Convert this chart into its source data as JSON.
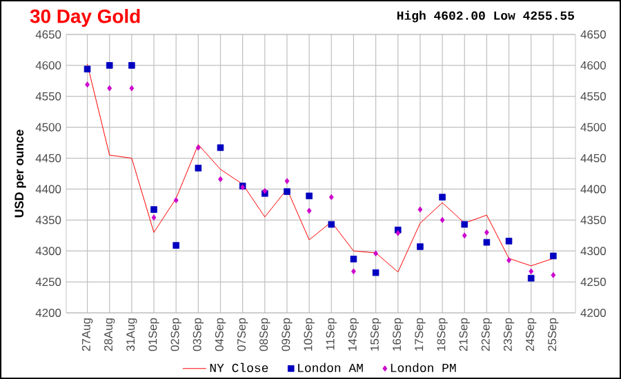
{
  "chart_data": {
    "type": "line",
    "title": "30 Day Gold",
    "ylabel": "USD per ounce",
    "annotations": [
      "High 4602.00 Low 4255.55"
    ],
    "categories": [
      "27Aug",
      "28Aug",
      "31Aug",
      "01Sep",
      "02Sep",
      "03Sep",
      "04Sep",
      "07Sep",
      "08Sep",
      "09Sep",
      "10Sep",
      "11Sep",
      "14Sep",
      "15Sep",
      "16Sep",
      "17Sep",
      "18Sep",
      "21Sep",
      "22Sep",
      "23Sep",
      "24Sep",
      "25Sep"
    ],
    "series": [
      {
        "name": "NY Close",
        "color": "#ff0000",
        "marker": "none",
        "values": [
          4602,
          4455,
          4450,
          4330,
          4385,
          4472,
          4432,
          4408,
          4355,
          4400,
          4318,
          4347,
          4300,
          4297,
          4266,
          4345,
          4378,
          4345,
          4358,
          4288,
          4276,
          4288
        ]
      },
      {
        "name": "London AM",
        "type": "scatter",
        "color": "#0000c0",
        "marker": "square",
        "values": [
          4594,
          4600,
          4600,
          4367,
          4309,
          4434,
          4467,
          4405,
          4393,
          4396,
          4389,
          4343,
          4287,
          4265,
          4334,
          4307,
          4387,
          4343,
          4314,
          4316,
          4256,
          4292
        ]
      },
      {
        "name": "London PM",
        "type": "scatter",
        "color": "#cc00cc",
        "marker": "diamond",
        "values": [
          4569,
          4563,
          4563,
          4354,
          4382,
          4467,
          4416,
          4403,
          4397,
          4413,
          4365,
          4387,
          4267,
          4296,
          4329,
          4367,
          4350,
          4325,
          4330,
          4285,
          4267,
          4261
        ]
      }
    ],
    "ylim": [
      4200,
      4650
    ],
    "yticks": [
      4200,
      4250,
      4300,
      4350,
      4400,
      4450,
      4500,
      4550,
      4600,
      4650
    ],
    "y2lim": [
      4200,
      4650
    ],
    "y2ticks": [
      4200,
      4250,
      4300,
      4350,
      4400,
      4450,
      4500,
      4550,
      4600,
      4650
    ],
    "grid": true,
    "legend": "bottom",
    "line_style": "solid"
  }
}
